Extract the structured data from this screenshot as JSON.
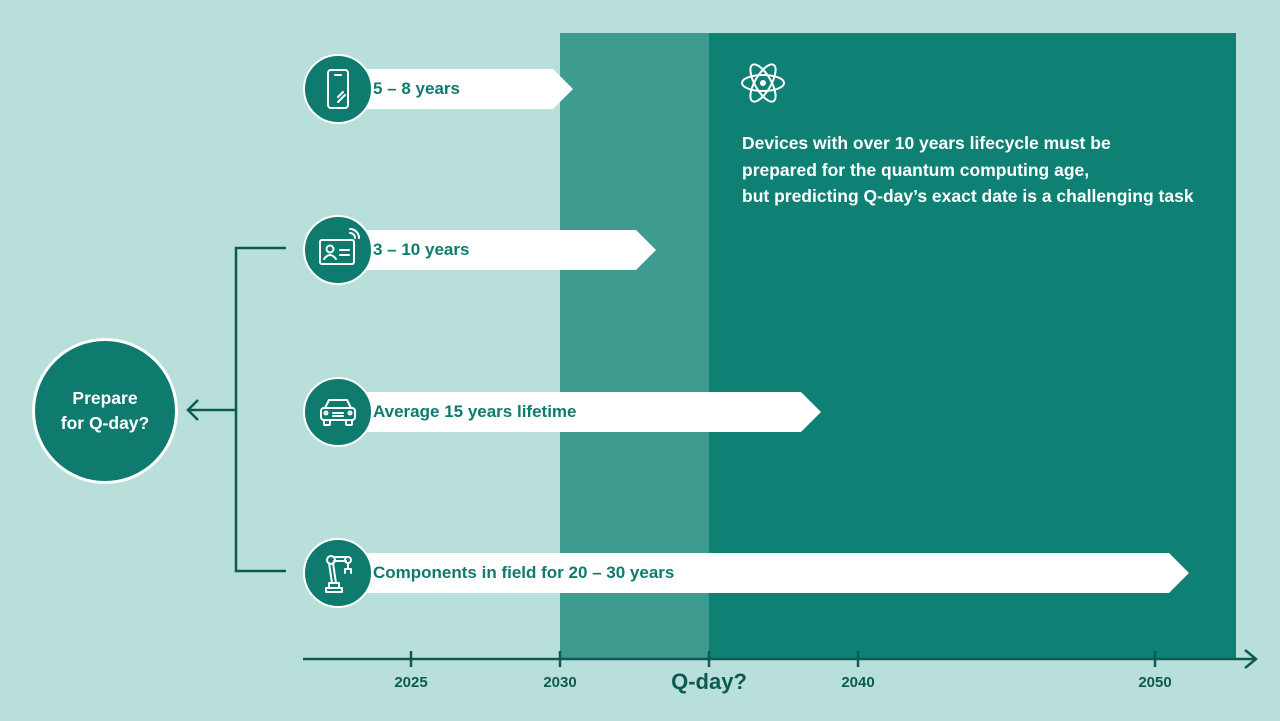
{
  "colors": {
    "background": "#b9dfdb",
    "band_light": "#3d9b90",
    "band_dark": "#0f8174",
    "primary": "#0f7a6e",
    "axis": "#0d5a52",
    "arrow_fill": "#ffffff"
  },
  "prepare": {
    "line1": "Prepare",
    "line2": "for Q-day?"
  },
  "info_text": {
    "icon": "atom-icon",
    "line1": "Devices with over 10 years lifecycle must be",
    "line2": "prepared for the quantum computing age,",
    "line3": "but predicting Q-day’s exact date is a challenging task"
  },
  "rows": [
    {
      "icon": "smartphone-icon",
      "label": "5 – 8 years"
    },
    {
      "icon": "id-card-icon",
      "label": "3 – 10 years"
    },
    {
      "icon": "car-icon",
      "label": "Average 15 years lifetime"
    },
    {
      "icon": "robot-arm-icon",
      "label": "Components in field for 20 – 30 years"
    }
  ],
  "axis": {
    "ticks": [
      "2025",
      "2030",
      "2040",
      "2050"
    ],
    "qday_label": "Q-day?"
  }
}
